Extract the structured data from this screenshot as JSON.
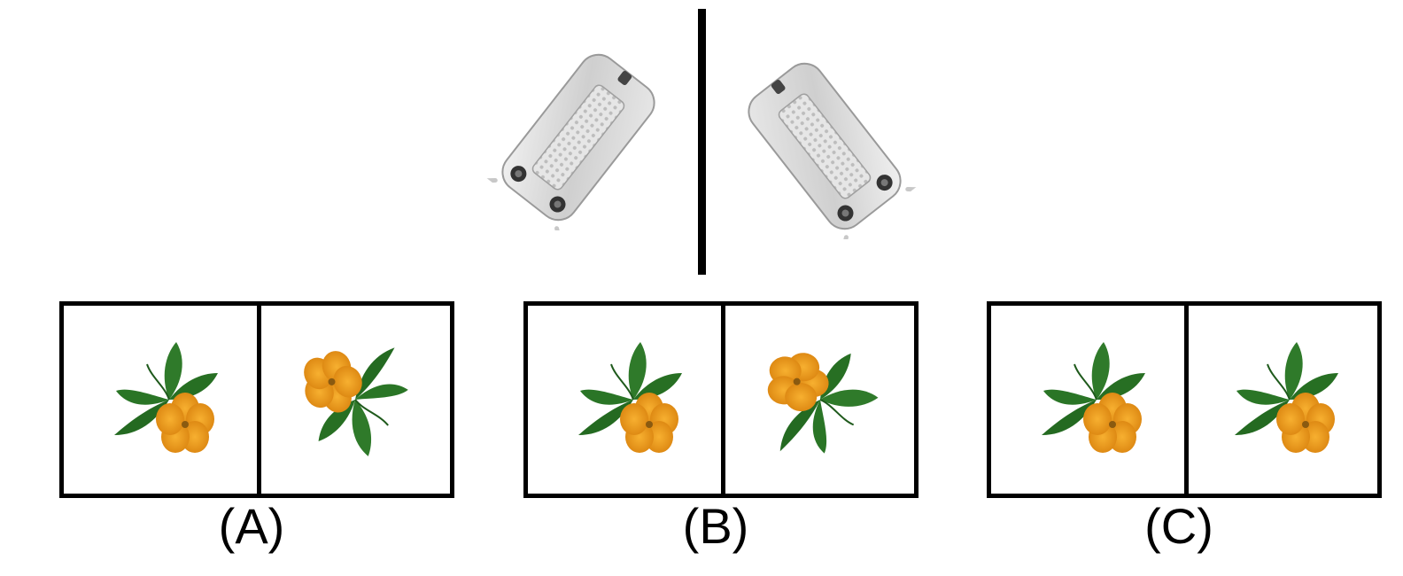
{
  "prompt_pair": {
    "left_object": "toaster-top-view",
    "right_object": "toaster-top-view-mirrored",
    "object_color": "#d9d9d9"
  },
  "options": [
    {
      "label": "(A)",
      "left": "flower",
      "right": "flower-rotated"
    },
    {
      "label": "(B)",
      "left": "flower",
      "right": "flower-mirrored"
    },
    {
      "label": "(C)",
      "left": "flower",
      "right": "flower"
    }
  ],
  "colors": {
    "petal": "#f2a020",
    "petal_dark": "#d9820e",
    "leaf": "#2f7a2a",
    "leaf_dark": "#1f5a1c",
    "frame": "#000000"
  }
}
